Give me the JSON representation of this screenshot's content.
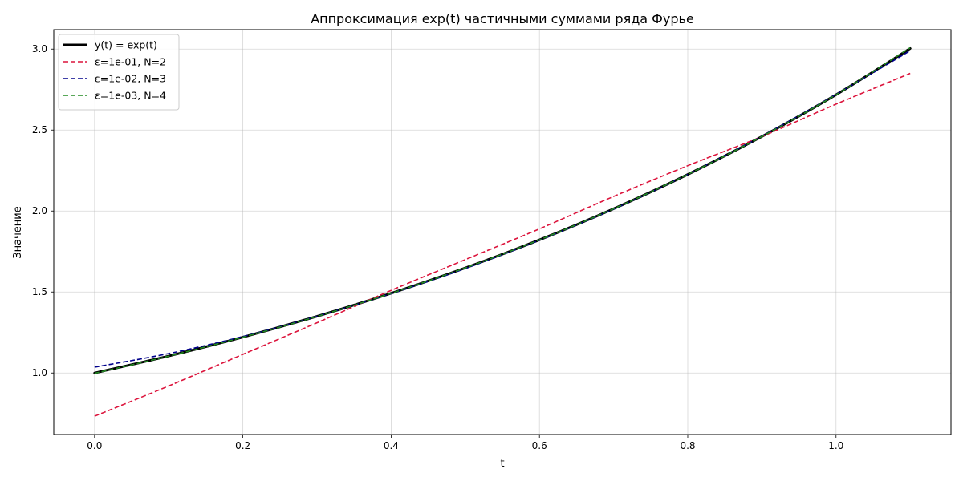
{
  "chart_data": {
    "type": "line",
    "title": "Аппроксимация exp(t) частичными суммами ряда Фурье",
    "xlabel": "t",
    "ylabel": "Значение",
    "xlim": [
      -0.055,
      1.155
    ],
    "ylim": [
      0.62,
      3.12
    ],
    "xticks": [
      0.0,
      0.2,
      0.4,
      0.6,
      0.8,
      1.0
    ],
    "xtick_labels": [
      "0.0",
      "0.2",
      "0.4",
      "0.6",
      "0.8",
      "1.0"
    ],
    "yticks": [
      1.0,
      1.5,
      2.0,
      2.5,
      3.0
    ],
    "ytick_labels": [
      "1.0",
      "1.5",
      "2.0",
      "2.5",
      "3.0"
    ],
    "grid": true,
    "legend_position": "top-left",
    "series": [
      {
        "name": "y(t) = exp(t)",
        "color": "#000000",
        "style": "solid",
        "x": [
          0.0,
          0.1,
          0.2,
          0.3,
          0.4,
          0.5,
          0.6,
          0.7,
          0.8,
          0.9,
          1.0,
          1.1
        ],
        "y": [
          1.0,
          1.105,
          1.221,
          1.35,
          1.492,
          1.649,
          1.822,
          2.014,
          2.226,
          2.46,
          2.718,
          3.004
        ]
      },
      {
        "name": "ε=1e-01, N=2",
        "color": "#dc143c",
        "style": "dashed",
        "x": [
          0.0,
          0.1,
          0.2,
          0.3,
          0.4,
          0.5,
          0.6,
          0.7,
          0.8,
          0.9,
          1.0,
          1.1
        ],
        "y": [
          0.733,
          0.92,
          1.115,
          1.31,
          1.51,
          1.7,
          1.89,
          2.09,
          2.28,
          2.46,
          2.66,
          2.85
        ]
      },
      {
        "name": "ε=1e-02, N=3",
        "color": "#00008b",
        "style": "dashed",
        "x": [
          0.0,
          0.1,
          0.2,
          0.3,
          0.4,
          0.5,
          0.6,
          0.7,
          0.8,
          0.9,
          1.0,
          1.1
        ],
        "y": [
          1.036,
          1.12,
          1.225,
          1.35,
          1.49,
          1.645,
          1.82,
          2.012,
          2.226,
          2.462,
          2.72,
          2.99
        ]
      },
      {
        "name": "ε=1e-03, N=4",
        "color": "#228b22",
        "style": "dashed",
        "x": [
          0.0,
          0.1,
          0.2,
          0.3,
          0.4,
          0.5,
          0.6,
          0.7,
          0.8,
          0.9,
          1.0,
          1.1
        ],
        "y": [
          0.998,
          1.104,
          1.221,
          1.349,
          1.492,
          1.649,
          1.822,
          2.014,
          2.226,
          2.46,
          2.718,
          3.008
        ]
      }
    ]
  }
}
